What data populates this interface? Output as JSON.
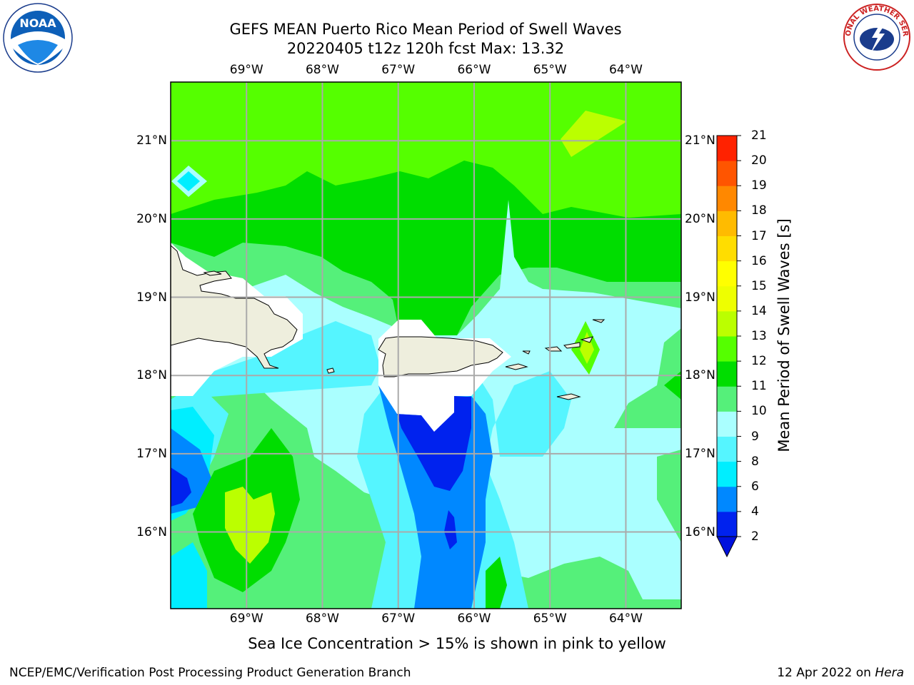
{
  "title": {
    "line1": "GEFS MEAN Puerto Rico Mean Period of Swell Waves",
    "line2": "20220405 t12z 120h fcst   Max: 13.32"
  },
  "axes": {
    "lon_labels": [
      "69°W",
      "68°W",
      "67°W",
      "66°W",
      "65°W",
      "64°W"
    ],
    "lon_values": [
      -69,
      -68,
      -67,
      -66,
      -65,
      -64
    ],
    "lat_labels": [
      "21°N",
      "20°N",
      "19°N",
      "18°N",
      "17°N",
      "16°N"
    ],
    "lat_values": [
      21,
      20,
      19,
      18,
      17,
      16
    ],
    "lon_range": [
      -70.0,
      -63.27
    ],
    "lat_range": [
      15.02,
      21.75
    ]
  },
  "colorbar": {
    "label": "Mean Period of Swell Waves [s]",
    "ticks": [
      "21",
      "20",
      "19",
      "18",
      "17",
      "16",
      "15",
      "14",
      "13",
      "12",
      "11",
      "10",
      "9",
      "8",
      "6",
      "4",
      "2"
    ],
    "levels": [
      2,
      4,
      6,
      8,
      9,
      10,
      11,
      12,
      13,
      14,
      15,
      16,
      17,
      18,
      19,
      20,
      21
    ],
    "colors": [
      "#0022ee",
      "#0088ff",
      "#00eeff",
      "#55f5ff",
      "#aaffff",
      "#55f07a",
      "#00dd00",
      "#55ff00",
      "#bbff00",
      "#eeff00",
      "#ffff00",
      "#ffdd00",
      "#ffbb00",
      "#ff8800",
      "#ff5500",
      "#ff2200",
      "#ff0000"
    ],
    "underflow_color": "#0011dd"
  },
  "land_color": "#eeeedd",
  "note": "Sea Ice Concentration > 15% is shown in pink to yellow",
  "footer": {
    "left": "NCEP/EMC/Verification Post Processing Product Generation Branch",
    "date": "12 Apr 2022 on ",
    "host": "Hera"
  },
  "logos": {
    "noaa_text": "NOAA",
    "nws_text": "NATIONAL WEATHER SERVICE"
  }
}
